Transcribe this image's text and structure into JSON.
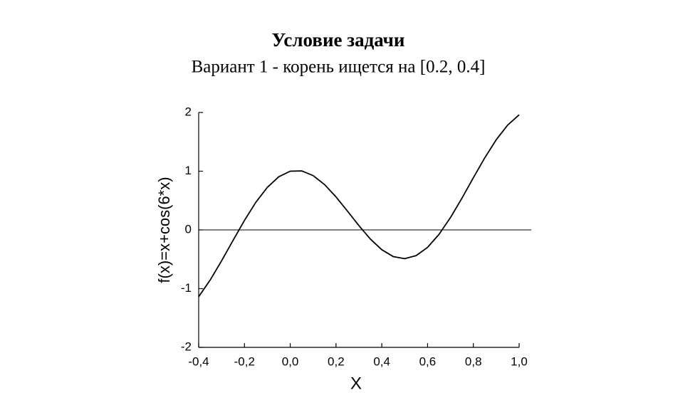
{
  "chart_data": {
    "type": "line",
    "title": "Условие задачи",
    "subtitle": "Вариант 1 - корень ищется на [0.2, 0.4]",
    "x_label": "X",
    "y_label": "f(x)=x+cos(6*x)",
    "x": [
      -0.4,
      -0.35,
      -0.3,
      -0.25,
      -0.2,
      -0.15,
      -0.1,
      -0.05,
      0,
      0.05,
      0.1,
      0.15,
      0.2,
      0.25,
      0.3,
      0.35,
      0.4,
      0.45,
      0.5,
      0.55,
      0.6,
      0.65,
      0.7,
      0.75,
      0.8,
      0.85,
      0.9,
      0.95,
      1.0
    ],
    "series": [
      {
        "color": "#000000",
        "values": [
          -1.137,
          -0.855,
          -0.527,
          -0.179,
          0.162,
          0.472,
          0.725,
          0.905,
          1.0,
          1.005,
          0.925,
          0.772,
          0.562,
          0.321,
          0.073,
          -0.155,
          -0.337,
          -0.454,
          -0.49,
          -0.438,
          -0.297,
          -0.076,
          0.21,
          0.539,
          0.888,
          1.228,
          1.535,
          1.785,
          1.96
        ]
      }
    ],
    "xlim": [
      -0.4,
      1.0
    ],
    "ylim": [
      -2,
      2
    ],
    "xticks": [
      {
        "value": -0.4,
        "label": "-0,4"
      },
      {
        "value": -0.2,
        "label": "-0,2"
      },
      {
        "value": 0,
        "label": "0,0"
      },
      {
        "value": 0.2,
        "label": "0,2"
      },
      {
        "value": 0.4,
        "label": "0,4"
      },
      {
        "value": 0.6,
        "label": "0,6"
      },
      {
        "value": 0.8,
        "label": "0,8"
      },
      {
        "value": 1.0,
        "label": "1,0"
      }
    ],
    "yticks": [
      2,
      1,
      0,
      -1,
      -2
    ],
    "reference_line": 0,
    "grid": false
  }
}
